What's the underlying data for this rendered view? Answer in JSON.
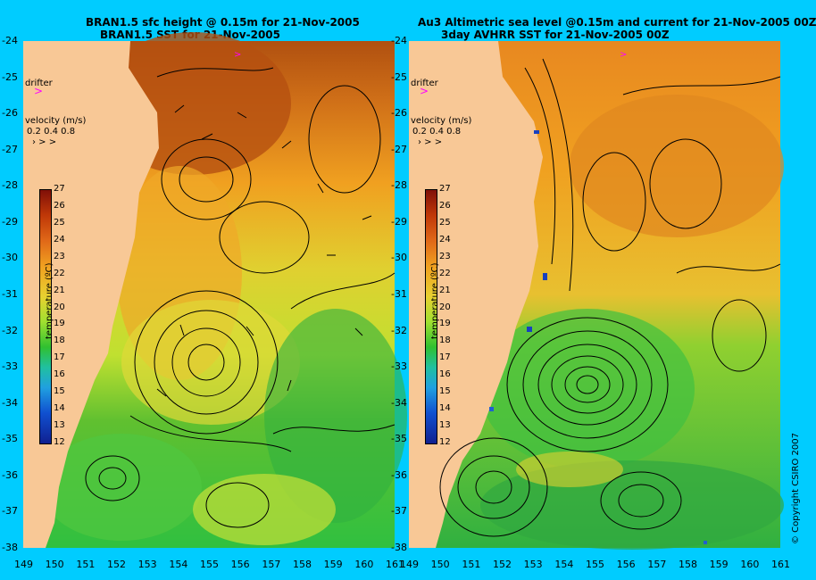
{
  "left_panel": {
    "title_line1": "BRAN1.5 sfc height @ 0.15m for 21-Nov-2005",
    "title_line2": "BRAN1.5 SST for 21-Nov-2005",
    "drifter_label": "drifter",
    "velocity_label": "velocity (m/s)",
    "velocity_scale": "0.2 0.4 0.8",
    "colorbar_title": "temperature (ºC)"
  },
  "right_panel": {
    "title_line1": "Au3 Altimetric sea level  @0.15m and current for 21-Nov-2005 00Z",
    "title_line2": "3day AVHRR SST for 21-Nov-2005 00Z",
    "drifter_label": "drifter",
    "velocity_label": "velocity (m/s)",
    "velocity_scale": "0.2 0.4 0.8",
    "colorbar_title": "temperature (ºC)"
  },
  "colorbar_ticks": [
    "27",
    "26",
    "25",
    "24",
    "23",
    "22",
    "21",
    "20",
    "19",
    "18",
    "17",
    "16",
    "15",
    "14",
    "13",
    "12"
  ],
  "lat_labels": [
    "-24",
    "-25",
    "-26",
    "-27",
    "-28",
    "-29",
    "-30",
    "-31",
    "-32",
    "-33",
    "-34",
    "-35",
    "-36",
    "-37",
    "-38"
  ],
  "lon_labels": [
    "149",
    "150",
    "151",
    "152",
    "153",
    "154",
    "155",
    "156",
    "157",
    "158",
    "159",
    "160",
    "161"
  ],
  "copyright": "© Copyright CSIRO 2007",
  "colors": {
    "frame": "#00ccff",
    "land": "#f8c896",
    "warm_water": "#f0a020",
    "cool_water": "#30c030",
    "drifter_marker": "#ff00ff"
  }
}
